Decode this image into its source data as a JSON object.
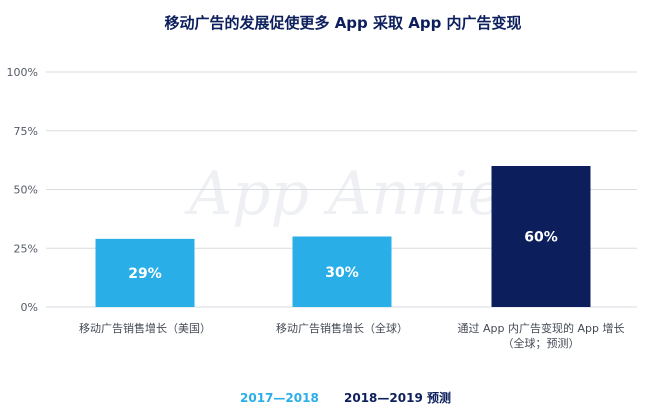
{
  "colors": {
    "series_1": "#29aee8",
    "series_2": "#0c1f5c",
    "title": "#0c1f5c",
    "grid": "#d8dbe0",
    "axis_text": "#555b66"
  },
  "watermark": "App Annie",
  "chart_data": {
    "type": "bar",
    "title": "移动广告的发展促使更多 App 采取 App 内广告变现",
    "categories": [
      [
        "移动广告销售增长（美国）"
      ],
      [
        "移动广告销售增长（全球）"
      ],
      [
        "通过 App 内广告变现的 App 增长",
        "（全球；预测）"
      ]
    ],
    "values": [
      29,
      30,
      60
    ],
    "value_labels": [
      "29%",
      "30%",
      "60%"
    ],
    "series_of_bar": [
      0,
      0,
      1
    ],
    "series": [
      {
        "name": "2017—2018"
      },
      {
        "name": "2018—2019 预测"
      }
    ],
    "y_ticks": [
      0,
      25,
      50,
      75,
      100
    ],
    "y_tick_labels": [
      "0%",
      "25%",
      "50%",
      "75%",
      "100%"
    ],
    "ylim": [
      0,
      100
    ],
    "grid": true,
    "legend_position": "bottom-left"
  }
}
